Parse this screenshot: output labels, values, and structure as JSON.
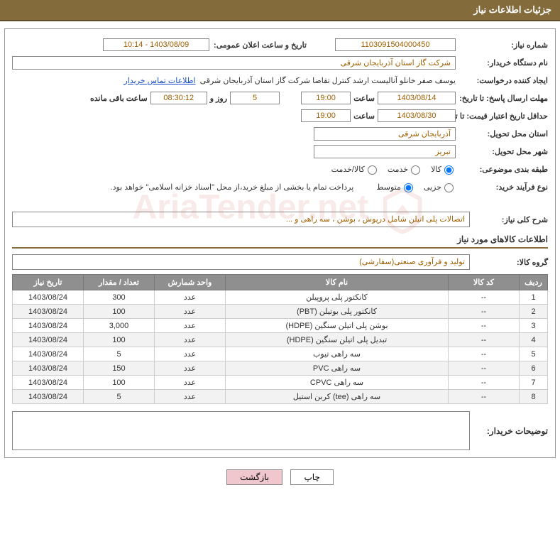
{
  "header": {
    "title": "جزئیات اطلاعات نیاز"
  },
  "fields": {
    "need_number_label": "شماره نیاز:",
    "need_number": "1103091504000450",
    "announce_dt_label": "تاریخ و ساعت اعلان عمومی:",
    "announce_dt": "1403/08/09 - 10:14",
    "buyer_org_label": "نام دستگاه خریدار:",
    "buyer_org": "شرکت گاز استان آذربایجان شرقی",
    "requester_label": "ایجاد کننده درخواست:",
    "requester": "یوسف صفر خانلو  آنالیست ارشد کنترل تقاضا  شرکت گاز استان آذربایجان شرقی",
    "contact_link": "اطلاعات تماس خریدار",
    "deadline_label": "مهلت ارسال پاسخ: تا تاریخ:",
    "deadline_date": "1403/08/14",
    "hour_label": "ساعت",
    "deadline_hour": "19:00",
    "days_label": "روز و",
    "days": "5",
    "remain_label": "ساعت باقی مانده",
    "remain_time": "08:30:12",
    "price_valid_label": "حداقل تاریخ اعتبار قیمت: تا تاریخ:",
    "price_valid_date": "1403/08/30",
    "price_valid_hour": "19:00",
    "province_label": "استان محل تحویل:",
    "province": "آذربایجان شرقی",
    "city_label": "شهر محل تحویل:",
    "city": "تبریز",
    "topic_class_label": "طبقه بندی موضوعی:",
    "topic_opts": {
      "goods": "کالا",
      "service": "خدمت",
      "goods_service": "کالا/خدمت"
    },
    "purchase_type_label": "نوع فرآیند خرید:",
    "purchase_opts": {
      "partial": "جزیی",
      "medium": "متوسط"
    },
    "purchase_note": "پرداخت تمام یا بخشی از مبلغ خرید،از محل \"اسناد خزانه اسلامی\" خواهد بود.",
    "need_desc_label": "شرح کلی نیاز:",
    "need_desc": "اتصالات پلی اتیلن شامل درپوش ، بوشن ، سه راهی و ...",
    "goods_info_title": "اطلاعات کالاهای مورد نیاز",
    "goods_group_label": "گروه کالا:",
    "goods_group": "تولید و فرآوری صنعتی(سفارشی)",
    "buyer_notes_label": "توضیحات خریدار:"
  },
  "table": {
    "columns": [
      "ردیف",
      "کد کالا",
      "نام کالا",
      "واحد شمارش",
      "تعداد / مقدار",
      "تاریخ نیاز"
    ],
    "col_widths": [
      "40px",
      "100px",
      "auto",
      "100px",
      "100px",
      "100px"
    ],
    "rows": [
      [
        "1",
        "--",
        "کانکتور پلی پروپیلن",
        "عدد",
        "300",
        "1403/08/24"
      ],
      [
        "2",
        "--",
        "کانکتور پلی بوتیلن (PBT)",
        "عدد",
        "100",
        "1403/08/24"
      ],
      [
        "3",
        "--",
        "بوشن پلی اتیلن سنگین (HDPE)",
        "عدد",
        "3,000",
        "1403/08/24"
      ],
      [
        "4",
        "--",
        "تبدیل پلی اتیلن سنگین (HDPE)",
        "عدد",
        "100",
        "1403/08/24"
      ],
      [
        "5",
        "--",
        "سه راهی تیوب",
        "عدد",
        "5",
        "1403/08/24"
      ],
      [
        "6",
        "--",
        "سه راهی PVC",
        "عدد",
        "150",
        "1403/08/24"
      ],
      [
        "7",
        "--",
        "سه راهی CPVC",
        "عدد",
        "100",
        "1403/08/24"
      ],
      [
        "8",
        "--",
        "سه راهی (tee) کربن استیل",
        "عدد",
        "5",
        "1403/08/24"
      ]
    ]
  },
  "buttons": {
    "print": "چاپ",
    "back": "بازگشت"
  },
  "style": {
    "header_bg": "#846b3c",
    "header_fg": "#ffffff",
    "th_bg": "#8f8f8f",
    "value_color": "#a06000",
    "back_btn_bg": "#efc7cc"
  },
  "watermark": {
    "text": "AriaTender.net"
  }
}
